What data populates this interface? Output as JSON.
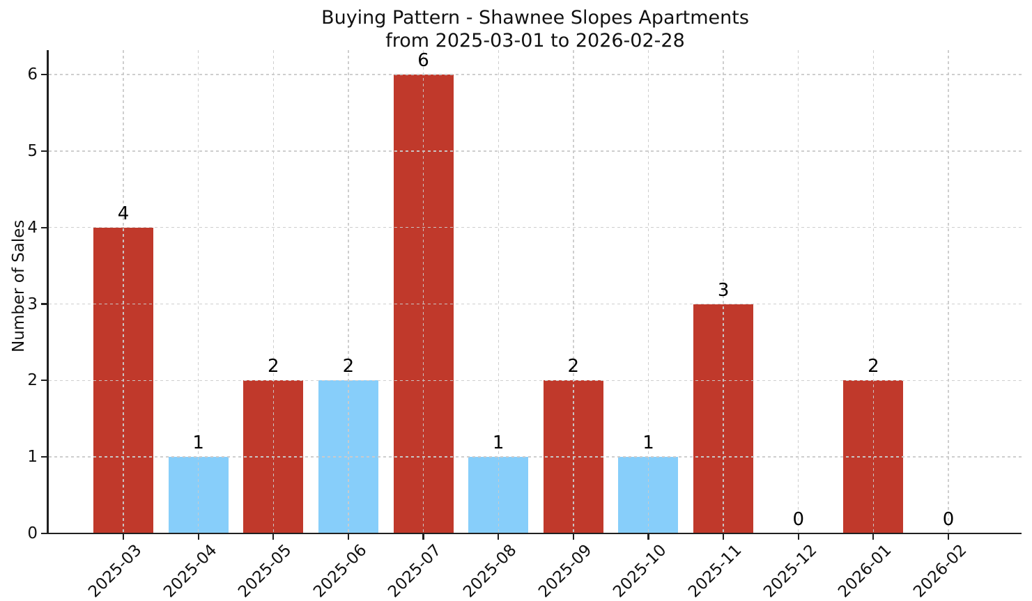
{
  "figure": {
    "title": "Buying Pattern - Shawnee Slopes Apartments",
    "subtitle": "from 2025-03-01 to 2026-02-28"
  },
  "chart_data": {
    "type": "bar",
    "title": "Buying Pattern - Shawnee Slopes Apartments",
    "subtitle": "from 2025-03-01 to 2026-02-28",
    "xlabel": "",
    "ylabel": "Number of Sales",
    "categories": [
      "2025-03",
      "2025-04",
      "2025-05",
      "2025-06",
      "2025-07",
      "2025-08",
      "2025-09",
      "2025-10",
      "2025-11",
      "2025-12",
      "2026-01",
      "2026-02"
    ],
    "values": [
      4,
      1,
      2,
      2,
      6,
      1,
      2,
      1,
      3,
      0,
      2,
      0
    ],
    "value_labels": [
      "4",
      "1",
      "2",
      "2",
      "6",
      "1",
      "2",
      "1",
      "3",
      "0",
      "2",
      "0"
    ],
    "bar_colors": [
      "red",
      "blue",
      "red",
      "blue",
      "red",
      "blue",
      "red",
      "blue",
      "red",
      "none",
      "red",
      "none"
    ],
    "palette": {
      "red": "#c0392b",
      "blue": "#87cefa",
      "none": null
    },
    "yticks": [
      0,
      1,
      2,
      3,
      4,
      5,
      6
    ],
    "ylim": [
      0,
      6.32
    ],
    "x_tick_rotation": 45,
    "grid": "dashed gray, horizontal and vertical, drawn above bars",
    "legend": "none"
  }
}
